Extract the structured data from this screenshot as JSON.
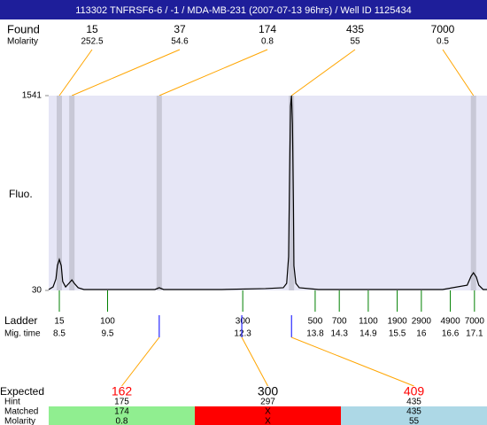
{
  "header": {
    "title": "113302  TNFRSF6-6 / -1 / MDA-MB-231 (2007-07-13 96hrs) / Well ID 1125434"
  },
  "found": {
    "label": "Found",
    "molarity_label": "Molarity",
    "peaks": [
      {
        "size": 15,
        "molarity": 252.5,
        "time": 8.5
      },
      {
        "size": 37,
        "molarity": 54.6,
        "time": 8.76
      },
      {
        "size": 174,
        "molarity": 0.8,
        "time": 10.57
      },
      {
        "size": 435,
        "molarity": 55,
        "time": 13.31
      },
      {
        "size": 7000,
        "molarity": 0.5,
        "time": 17.08
      }
    ]
  },
  "chart_data": {
    "type": "line",
    "y_label": "Fluo.",
    "ylim": [
      30,
      1541
    ],
    "yticks": [
      30,
      1541
    ],
    "xlim": [
      8.28,
      17.36
    ],
    "x": [
      8.28,
      8.37,
      8.43,
      8.46,
      8.5,
      8.54,
      8.57,
      8.63,
      8.7,
      8.76,
      8.81,
      8.89,
      9.01,
      10.02,
      10.48,
      10.57,
      10.66,
      11.86,
      12.77,
      13.14,
      13.21,
      13.25,
      13.27,
      13.29,
      13.31,
      13.33,
      13.35,
      13.36,
      13.4,
      13.47,
      13.87,
      16.44,
      16.95,
      17.03,
      17.08,
      17.14,
      17.19,
      17.28,
      17.36
    ],
    "series": [
      {
        "color": "#000000",
        "values": [
          37,
          57,
          119,
          222,
          270,
          222,
          99,
          57,
          85,
          112,
          85,
          51,
          37,
          37,
          37,
          51,
          37,
          37,
          44,
          51,
          85,
          291,
          909,
          1459,
          1541,
          1321,
          703,
          222,
          85,
          51,
          37,
          37,
          71,
          140,
          167,
          133,
          71,
          37,
          37
        ]
      }
    ],
    "plot_color": "#e6e6f6"
  },
  "ladder": {
    "label": "Ladder",
    "time_label": "Mig. time",
    "sizes": [
      15,
      100,
      300,
      500,
      700,
      1100,
      1900,
      2900,
      4900,
      7000
    ],
    "times": [
      8.5,
      9.5,
      12.3,
      13.8,
      14.3,
      14.9,
      15.5,
      16,
      16.6,
      17.1
    ]
  },
  "expected": {
    "label": "Expected",
    "hint_label": "Hint",
    "matched_label": "Matched",
    "molarity_label": "Molarity",
    "items": [
      {
        "value": 162,
        "color": "#ff0000",
        "time": 10.57,
        "hint": 175,
        "matched": 174,
        "molarity": 0.8,
        "band": "#90ee90"
      },
      {
        "value": 300,
        "color": "#000000",
        "time": 12.28,
        "hint": 297,
        "matched": "X",
        "molarity": "X",
        "band": "#ff0000"
      },
      {
        "value": 409,
        "color": "#ff0000",
        "time": 13.31,
        "hint": 435,
        "matched": 435,
        "molarity": 55,
        "band": "#add8e6"
      }
    ]
  }
}
